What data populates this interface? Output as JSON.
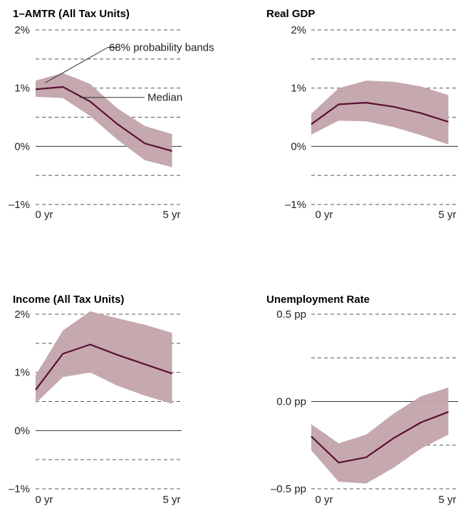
{
  "chart_data": [
    {
      "type": "line",
      "title": "1–AMTR (All Tax Units)",
      "x": [
        0,
        1,
        2,
        3,
        4,
        5
      ],
      "x_tick_labels": [
        "0 yr",
        "5 yr"
      ],
      "y_ticks": [
        2,
        1,
        0,
        -1
      ],
      "y_tick_labels": [
        "2%",
        "1%",
        "0%",
        "–1%"
      ],
      "ylim": [
        -1,
        2
      ],
      "grid": "dashed at 0.5 steps; solid line at 0",
      "series": [
        {
          "name": "Median",
          "values": [
            0.98,
            1.02,
            0.77,
            0.38,
            0.05,
            -0.08
          ]
        },
        {
          "name": "68% probability bands",
          "upper": [
            1.13,
            1.26,
            1.07,
            0.65,
            0.35,
            0.21
          ],
          "lower": [
            0.85,
            0.83,
            0.52,
            0.11,
            -0.24,
            -0.36
          ]
        }
      ],
      "annotations": [
        "68% probability bands",
        "Median"
      ],
      "colors": {
        "line": "#5b0f33",
        "band": "#c2a4ab"
      }
    },
    {
      "type": "line",
      "title": "Real GDP",
      "x": [
        0,
        1,
        2,
        3,
        4,
        5
      ],
      "x_tick_labels": [
        "0 yr",
        "5 yr"
      ],
      "y_ticks": [
        2,
        1,
        0,
        -1
      ],
      "y_tick_labels": [
        "2%",
        "1%",
        "0%",
        "–1%"
      ],
      "ylim": [
        -1,
        2
      ],
      "series": [
        {
          "name": "Median",
          "values": [
            0.38,
            0.72,
            0.75,
            0.68,
            0.57,
            0.42
          ]
        },
        {
          "name": "68% probability bands",
          "upper": [
            0.56,
            1.0,
            1.13,
            1.11,
            1.03,
            0.88
          ],
          "lower": [
            0.2,
            0.44,
            0.43,
            0.33,
            0.19,
            0.03
          ]
        }
      ],
      "colors": {
        "line": "#5b0f33",
        "band": "#c2a4ab"
      }
    },
    {
      "type": "line",
      "title": "Income (All Tax Units)",
      "x": [
        0,
        1,
        2,
        3,
        4,
        5
      ],
      "x_tick_labels": [
        "0 yr",
        "5 yr"
      ],
      "y_ticks": [
        2,
        1,
        0,
        -1
      ],
      "y_tick_labels": [
        "2%",
        "1%",
        "0%",
        "–1%"
      ],
      "ylim": [
        -1,
        2
      ],
      "series": [
        {
          "name": "Median",
          "values": [
            0.7,
            1.32,
            1.48,
            1.3,
            1.14,
            0.98
          ]
        },
        {
          "name": "68% probability bands",
          "upper": [
            0.95,
            1.72,
            2.05,
            1.93,
            1.82,
            1.68
          ],
          "lower": [
            0.47,
            0.92,
            1.0,
            0.77,
            0.6,
            0.46
          ]
        }
      ],
      "colors": {
        "line": "#5b0f33",
        "band": "#c2a4ab"
      }
    },
    {
      "type": "line",
      "title": "Unemployment Rate",
      "x": [
        0,
        1,
        2,
        3,
        4,
        5
      ],
      "x_tick_labels": [
        "0 yr",
        "5 yr"
      ],
      "y_ticks": [
        0.5,
        0.0,
        -0.5
      ],
      "y_tick_labels": [
        "0.5 pp",
        "0.0 pp",
        "–0.5 pp"
      ],
      "ylim": [
        -0.5,
        0.5
      ],
      "series": [
        {
          "name": "Median",
          "values": [
            -0.2,
            -0.35,
            -0.32,
            -0.21,
            -0.12,
            -0.06
          ]
        },
        {
          "name": "68% probability bands",
          "upper": [
            -0.13,
            -0.24,
            -0.19,
            -0.07,
            0.03,
            0.08
          ],
          "lower": [
            -0.28,
            -0.46,
            -0.47,
            -0.38,
            -0.27,
            -0.19
          ]
        }
      ],
      "colors": {
        "line": "#5b0f33",
        "band": "#c2a4ab"
      }
    }
  ]
}
